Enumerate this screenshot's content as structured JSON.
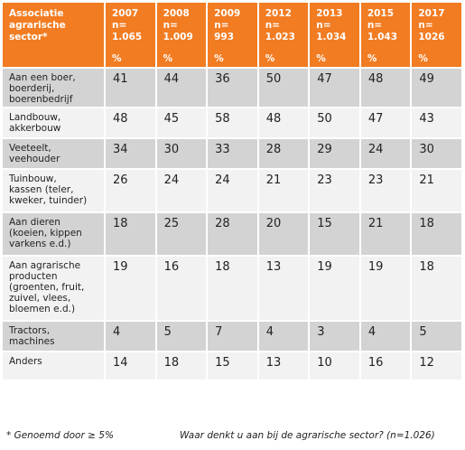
{
  "table": {
    "header_label": [
      "Associatie",
      "agrarische",
      "sector*"
    ],
    "columns": [
      {
        "year": "2007",
        "n": [
          "n=",
          "1.065"
        ],
        "unit": "%"
      },
      {
        "year": "2008",
        "n": [
          "n=",
          "1.009"
        ],
        "unit": "%"
      },
      {
        "year": "2009",
        "n": [
          "n=",
          "993"
        ],
        "unit": "%"
      },
      {
        "year": "2012",
        "n": [
          "n=",
          "1.023"
        ],
        "unit": "%"
      },
      {
        "year": "2013",
        "n": [
          "n=",
          "1.034"
        ],
        "unit": "%"
      },
      {
        "year": "2015",
        "n": [
          "n=",
          "1.043"
        ],
        "unit": "%"
      },
      {
        "year": "2017",
        "n": [
          "n=",
          "1026"
        ],
        "unit": "%"
      }
    ],
    "rows": [
      {
        "label": [
          "Aan een boer,",
          "boerderij,",
          "boerenbedrijf"
        ],
        "values": [
          "41",
          "44",
          "36",
          "50",
          "47",
          "48",
          "49"
        ],
        "height": 44
      },
      {
        "label": [
          "Landbouw,",
          "akkerbouw"
        ],
        "values": [
          "48",
          "45",
          "58",
          "48",
          "50",
          "47",
          "43"
        ],
        "height": 34
      },
      {
        "label": [
          "Veeteelt,",
          "veehouder"
        ],
        "values": [
          "34",
          "30",
          "33",
          "28",
          "29",
          "24",
          "30"
        ],
        "height": 34
      },
      {
        "label": [
          "Tuinbouw,",
          "kassen (teler,",
          "kweker, tuinder)"
        ],
        "values": [
          "26",
          "24",
          "24",
          "21",
          "23",
          "23",
          "21"
        ],
        "height": 48
      },
      {
        "label": [
          "Aan dieren",
          "(koeien, kippen",
          "varkens e.d.)"
        ],
        "values": [
          "18",
          "25",
          "28",
          "20",
          "15",
          "21",
          "18"
        ],
        "height": 48
      },
      {
        "label": [
          "Aan agrarische",
          "producten",
          "(groenten, fruit,",
          "zuivel, vlees,",
          "bloemen e.d.)"
        ],
        "values": [
          "19",
          "16",
          "18",
          "13",
          "19",
          "19",
          "18"
        ],
        "height": 72
      },
      {
        "label": [
          "Tractors,",
          "machines"
        ],
        "values": [
          "4",
          "5",
          "7",
          "4",
          "3",
          "4",
          "5"
        ],
        "height": 34
      },
      {
        "label": [
          "Anders"
        ],
        "values": [
          "14",
          "18",
          "15",
          "13",
          "10",
          "16",
          "12"
        ],
        "height": 32
      }
    ]
  },
  "footer": {
    "note": "* Genoemd door ≥ 5%",
    "question": "Waar denkt u aan bij de agrarische sector? (n=1.026)"
  },
  "colors": {
    "header_bg": "#f27c22",
    "row_shade": "#d3d3d3",
    "row_light": "#f2f2f2"
  }
}
